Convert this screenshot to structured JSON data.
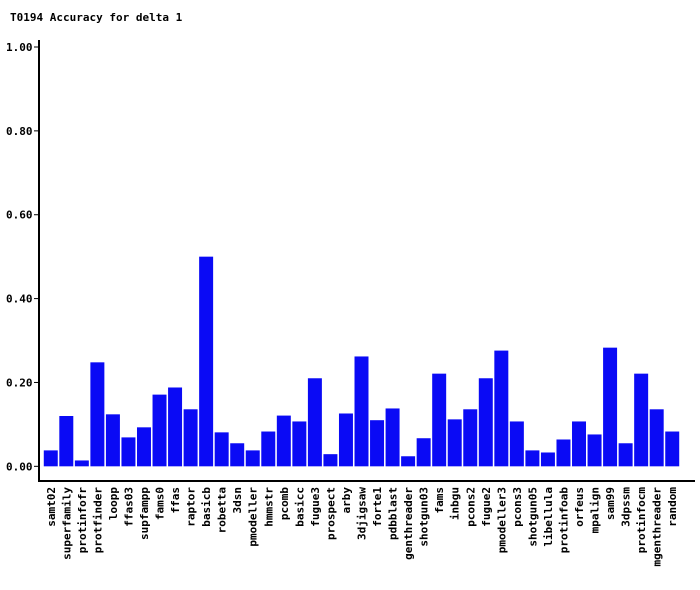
{
  "chart_data": {
    "type": "bar",
    "title": "T0194 Accuracy for delta 1",
    "categories": [
      "samt02",
      "superfamily",
      "protinfofr",
      "protfinder",
      "loopp",
      "ffas03",
      "supfampp",
      "fams0",
      "ffas",
      "raptor",
      "basicb",
      "robetta",
      "3dsn",
      "pmodeller",
      "hmmstr",
      "pcomb",
      "basicc",
      "fugue3",
      "prospect",
      "arby",
      "3djigsaw",
      "forte1",
      "pdbblast",
      "genthreader",
      "shotgun03",
      "fams",
      "inbgu",
      "pcons2",
      "fugue2",
      "pmodeller3",
      "pcons3",
      "shotgun05",
      "libellula",
      "protinfoab",
      "orfeus",
      "mpalign",
      "sam99",
      "3dpssm",
      "protinfocm",
      "mgenthreader",
      "random"
    ],
    "values": [
      0.038,
      0.12,
      0.014,
      0.248,
      0.124,
      0.069,
      0.093,
      0.171,
      0.188,
      0.136,
      0.5,
      0.081,
      0.055,
      0.038,
      0.083,
      0.121,
      0.107,
      0.21,
      0.029,
      0.126,
      0.262,
      0.11,
      0.138,
      0.024,
      0.067,
      0.221,
      0.112,
      0.136,
      0.21,
      0.276,
      0.107,
      0.038,
      0.033,
      0.064,
      0.107,
      0.076,
      0.283,
      0.055,
      0.221,
      0.136,
      0.083
    ],
    "color": "#0a0af5",
    "ylim": [
      -0.035,
      1.0
    ],
    "yticks": [
      {
        "value": 0,
        "label": "0.00"
      },
      {
        "value": 0.2,
        "label": "0.20"
      },
      {
        "value": 0.4,
        "label": "0.40"
      },
      {
        "value": 0.6,
        "label": "0.60"
      },
      {
        "value": 0.8,
        "label": "0.80"
      },
      {
        "value": 1.0,
        "label": "1.00"
      }
    ]
  }
}
